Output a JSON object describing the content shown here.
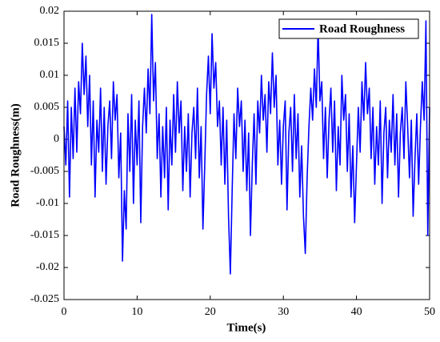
{
  "chart_data": {
    "type": "line",
    "xlabel": "Time(s)",
    "ylabel": "Road Roughness(m)",
    "x": [
      0,
      0.25,
      0.5,
      0.75,
      1,
      1.25,
      1.5,
      1.75,
      2,
      2.25,
      2.5,
      2.75,
      3,
      3.25,
      3.5,
      3.75,
      4,
      4.25,
      4.5,
      4.75,
      5,
      5.25,
      5.5,
      5.75,
      6,
      6.25,
      6.5,
      6.75,
      7,
      7.25,
      7.5,
      7.75,
      8,
      8.25,
      8.5,
      8.75,
      9,
      9.25,
      9.5,
      9.75,
      10,
      10.25,
      10.5,
      10.75,
      11,
      11.25,
      11.5,
      11.75,
      12,
      12.25,
      12.5,
      12.75,
      13,
      13.25,
      13.5,
      13.75,
      14,
      14.25,
      14.5,
      14.75,
      15,
      15.25,
      15.5,
      15.75,
      16,
      16.25,
      16.5,
      16.75,
      17,
      17.25,
      17.5,
      17.75,
      18,
      18.25,
      18.5,
      18.75,
      19,
      19.25,
      19.5,
      19.75,
      20,
      20.25,
      20.5,
      20.75,
      21,
      21.25,
      21.5,
      21.75,
      22,
      22.25,
      22.5,
      22.75,
      23,
      23.25,
      23.5,
      23.75,
      24,
      24.25,
      24.5,
      24.75,
      25,
      25.25,
      25.5,
      25.75,
      26,
      26.25,
      26.5,
      26.75,
      27,
      27.25,
      27.5,
      27.75,
      28,
      28.25,
      28.5,
      28.75,
      29,
      29.25,
      29.5,
      29.75,
      30,
      30.25,
      30.5,
      30.75,
      31,
      31.25,
      31.5,
      31.75,
      32,
      32.25,
      32.5,
      32.75,
      33,
      33.25,
      33.5,
      33.75,
      34,
      34.25,
      34.5,
      34.75,
      35,
      35.25,
      35.5,
      35.75,
      36,
      36.25,
      36.5,
      36.75,
      37,
      37.25,
      37.5,
      37.75,
      38,
      38.25,
      38.5,
      38.75,
      39,
      39.25,
      39.5,
      39.75,
      40,
      40.25,
      40.5,
      40.75,
      41,
      41.25,
      41.5,
      41.75,
      42,
      42.25,
      42.5,
      42.75,
      43,
      43.25,
      43.5,
      43.75,
      44,
      44.25,
      44.5,
      44.75,
      45,
      45.25,
      45.5,
      45.75,
      46,
      46.25,
      46.5,
      46.75,
      47,
      47.25,
      47.5,
      47.75,
      48,
      48.25,
      48.5,
      48.75,
      49,
      49.25,
      49.5,
      49.75,
      50
    ],
    "series": [
      {
        "name": "Road Roughness",
        "color": "#0000ff",
        "values": [
          0.002,
          -0.004,
          0.006,
          -0.009,
          0.005,
          -0.003,
          0.008,
          -0.002,
          0.009,
          0.004,
          0.015,
          0.007,
          0.013,
          0.002,
          0.01,
          -0.004,
          0.006,
          -0.009,
          0.003,
          -0.002,
          0.008,
          -0.005,
          0.005,
          -0.007,
          0.002,
          0.006,
          -0.003,
          0.009,
          0.003,
          0.007,
          -0.006,
          0.001,
          -0.019,
          -0.008,
          -0.014,
          0.004,
          -0.005,
          0.007,
          -0.01,
          0.003,
          -0.004,
          0.006,
          -0.013,
          0.002,
          0.008,
          0.001,
          0.011,
          0.004,
          0.0195,
          0.006,
          0.012,
          -0.003,
          0.004,
          -0.009,
          0.002,
          -0.006,
          0.005,
          -0.011,
          0.003,
          -0.004,
          0.007,
          -0.002,
          0.009,
          0.001,
          0.006,
          -0.008,
          0.002,
          -0.005,
          0.004,
          -0.009,
          0.001,
          0.005,
          -0.003,
          0.008,
          -0.006,
          0.002,
          -0.014,
          -0.004,
          0.007,
          0.013,
          0.004,
          0.0165,
          0.008,
          0.012,
          0.002,
          0.006,
          -0.004,
          0.005,
          -0.007,
          0.003,
          -0.012,
          -0.021,
          -0.008,
          0.004,
          -0.003,
          0.008,
          0.002,
          0.006,
          -0.005,
          0.003,
          -0.008,
          0.001,
          -0.015,
          -0.004,
          0.004,
          -0.007,
          0.006,
          0.001,
          0.01,
          0.003,
          0.007,
          -0.002,
          0.009,
          0.004,
          0.0135,
          0.005,
          0.01,
          -0.004,
          0.003,
          -0.007,
          0.002,
          0.006,
          -0.011,
          0.001,
          0.005,
          -0.005,
          0.007,
          -0.003,
          0.004,
          -0.009,
          -0.001,
          -0.012,
          -0.0178,
          -0.006,
          0.002,
          0.008,
          0.003,
          0.011,
          0.005,
          0.0175,
          0.006,
          0.009,
          -0.003,
          0.005,
          -0.006,
          0.003,
          0.008,
          -0.002,
          0.006,
          -0.008,
          0.002,
          -0.004,
          0.01,
          0.003,
          0.007,
          -0.005,
          0.004,
          -0.009,
          -0.001,
          -0.013,
          -0.004,
          0.005,
          -0.002,
          0.009,
          0.003,
          0.012,
          0.004,
          0.008,
          -0.003,
          0.005,
          -0.007,
          0.002,
          -0.004,
          0.006,
          -0.01,
          0.001,
          0.005,
          -0.006,
          0.003,
          -0.002,
          0.007,
          -0.004,
          0.004,
          -0.009,
          0.001,
          0.005,
          -0.003,
          0.009,
          0.002,
          -0.006,
          0.003,
          -0.012,
          -0.003,
          0.004,
          -0.007,
          0.002,
          0.009,
          0.003,
          0.0185,
          -0.015,
          0.005
        ]
      }
    ],
    "xlim": [
      0,
      50
    ],
    "xticks": [
      0,
      10,
      20,
      30,
      40,
      50
    ],
    "ylim": [
      -0.025,
      0.02
    ],
    "yticks": [
      -0.025,
      -0.02,
      -0.015,
      -0.01,
      -0.005,
      0,
      0.005,
      0.01,
      0.015,
      0.02
    ],
    "grid": false,
    "legend": "upper right"
  }
}
